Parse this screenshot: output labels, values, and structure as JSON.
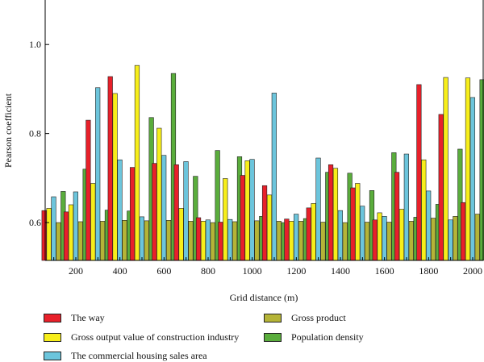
{
  "chart_data": {
    "type": "bar",
    "xlabel": "Grid distance (m)",
    "ylabel": "Pearson coefficient",
    "x": [
      100,
      200,
      300,
      400,
      500,
      600,
      700,
      800,
      900,
      1000,
      1100,
      1200,
      1300,
      1400,
      1500,
      1600,
      1700,
      1800,
      1900,
      2000
    ],
    "x_ticks": [
      "200",
      "400",
      "600",
      "800",
      "1000",
      "1200",
      "1400",
      "1600",
      "1800",
      "2000"
    ],
    "y_ticks": [
      "0.6",
      "0.8",
      "1.0"
    ],
    "ylim": [
      0.515,
      1.1
    ],
    "grid": false,
    "legend_position": "bottom",
    "series": [
      {
        "name": "The way",
        "color": "#e8202a",
        "values": [
          0.627,
          0.624,
          0.83,
          0.928,
          0.724,
          0.733,
          0.73,
          0.611,
          0.601,
          0.706,
          0.683,
          0.608,
          0.633,
          0.73,
          0.678,
          0.606,
          0.713,
          0.91,
          0.843,
          0.645
        ]
      },
      {
        "name": "Gross output value of construction industry",
        "color": "#f7ee1a",
        "values": [
          0.632,
          0.64,
          0.688,
          0.89,
          0.953,
          0.812,
          0.632,
          0.603,
          0.699,
          0.739,
          0.662,
          0.603,
          0.643,
          0.722,
          0.688,
          0.622,
          0.63,
          0.741,
          0.926,
          0.925
        ]
      },
      {
        "name": "The commercial housing sales area",
        "color": "#6cc5dc",
        "values": [
          0.658,
          0.669,
          0.903,
          0.741,
          0.613,
          0.751,
          0.737,
          0.606,
          0.607,
          0.742,
          0.891,
          0.619,
          0.745,
          0.627,
          0.637,
          0.614,
          0.754,
          0.671,
          0.606,
          0.881
        ]
      },
      {
        "name": "Gross product",
        "color": "#b5b437",
        "values": [
          0.6,
          0.602,
          0.603,
          0.605,
          0.604,
          0.605,
          0.603,
          0.6,
          0.602,
          0.604,
          0.603,
          0.603,
          0.601,
          0.6,
          0.601,
          0.601,
          0.603,
          0.61,
          0.614,
          0.619
        ]
      },
      {
        "name": "Population density",
        "color": "#5aad3c",
        "values": [
          0.67,
          0.72,
          0.628,
          0.626,
          0.836,
          0.935,
          0.704,
          0.762,
          0.748,
          0.614,
          0.6,
          0.609,
          0.713,
          0.711,
          0.672,
          0.757,
          0.612,
          0.641,
          0.765,
          0.921
        ]
      }
    ]
  }
}
